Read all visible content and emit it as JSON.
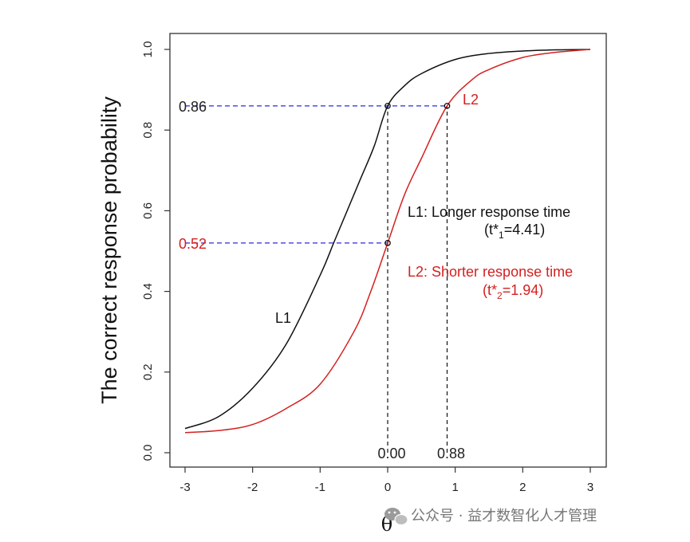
{
  "chart_data": {
    "type": "line",
    "xlabel": "θ",
    "ylabel": "The correct response probability",
    "xlim": [
      -3,
      3
    ],
    "ylim": [
      0,
      1
    ],
    "x_ticks": [
      "-3",
      "-2",
      "-1",
      "0",
      "1",
      "2",
      "3"
    ],
    "y_ticks": [
      "0.0",
      "0.2",
      "0.4",
      "0.6",
      "0.8",
      "1.0"
    ],
    "grid": false,
    "series": [
      {
        "name": "L1",
        "color": "#111111",
        "x": [
          -3,
          -2.5,
          -2,
          -1.5,
          -1,
          -0.8,
          -0.6,
          -0.4,
          -0.2,
          0,
          0.25,
          0.5,
          1,
          1.5,
          2,
          2.5,
          3
        ],
        "y": [
          0.06,
          0.09,
          0.16,
          0.27,
          0.44,
          0.52,
          0.6,
          0.68,
          0.76,
          0.86,
          0.91,
          0.94,
          0.975,
          0.99,
          0.996,
          0.999,
          1.0
        ]
      },
      {
        "name": "L2",
        "color": "#d42020",
        "x": [
          -3,
          -2.5,
          -2,
          -1.5,
          -1,
          -0.5,
          -0.25,
          0,
          0.25,
          0.5,
          0.88,
          1.25,
          1.5,
          2,
          2.5,
          3
        ],
        "y": [
          0.05,
          0.055,
          0.07,
          0.11,
          0.17,
          0.3,
          0.4,
          0.52,
          0.64,
          0.73,
          0.86,
          0.925,
          0.95,
          0.98,
          0.993,
          1.0
        ]
      }
    ],
    "reference_lines": [
      {
        "x_from": -3,
        "x_to": 0.88,
        "y": 0.86,
        "label": "0.86",
        "label_color": "#222222",
        "style": "dashed",
        "color": "#2a2ae0"
      },
      {
        "x_from": -3,
        "x_to": 0,
        "y": 0.52,
        "label": "0.52",
        "label_color": "#d42020",
        "style": "dashed",
        "color": "#2a2ae0"
      },
      {
        "x": 0,
        "y_from": 0,
        "y_to": 0.86,
        "label": "0.00",
        "style": "dashed",
        "color": "#111111"
      },
      {
        "x": 0.88,
        "y_from": 0,
        "y_to": 0.86,
        "label": "0.88",
        "style": "dashed",
        "color": "#111111"
      }
    ],
    "points": [
      {
        "x": 0,
        "y": 0.86
      },
      {
        "x": 0.88,
        "y": 0.86
      },
      {
        "x": 0,
        "y": 0.52
      }
    ],
    "annotations": {
      "curve_label_l1": "L1",
      "curve_label_l2": "L2",
      "legend_l1_line1": "L1: Longer response time",
      "legend_l1_line2_prefix": "(t*",
      "legend_l1_sub": "1",
      "legend_l1_line2_suffix": "=4.41)",
      "legend_l2_line1": "L2: Shorter response time",
      "legend_l2_line2_prefix": "(t*",
      "legend_l2_sub": "2",
      "legend_l2_line2_suffix": "=1.94)"
    }
  },
  "watermark": {
    "text": "公众号 · 益才数智化人才管理",
    "icon": "wechat-icon"
  }
}
